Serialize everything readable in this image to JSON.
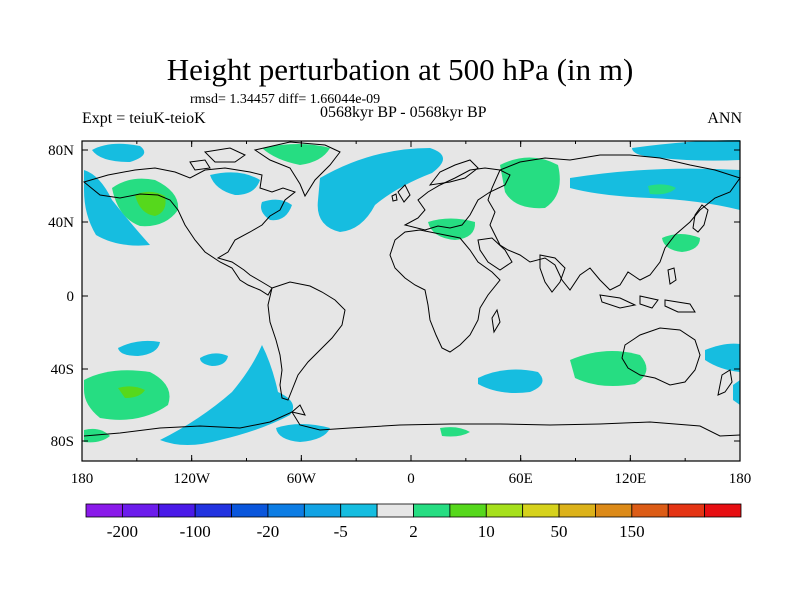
{
  "title": "Height perturbation at 500 hPa (in m)",
  "stats": "rmsd= 1.34457 diff= 1.66044e-09",
  "experiment": "Expt = teiuK-teioK",
  "period": "0568kyr BP - 0568kyr BP",
  "season": "ANN",
  "colors": {
    "background": "#e6e6e6",
    "coast": "#000000",
    "neg_small": "#16bde0",
    "pos_small": "#26dd82",
    "pos_mid": "#56d81c"
  },
  "lat_ticks": [
    "80N",
    "40N",
    "0",
    "40S",
    "80S"
  ],
  "lon_ticks": [
    "180",
    "120W",
    "60W",
    "0",
    "60E",
    "120E",
    "180"
  ],
  "colorbar": {
    "colors": [
      "#8a1aea",
      "#6c1cec",
      "#4a1ae8",
      "#2233e0",
      "#0a56dc",
      "#0d7de4",
      "#12a3e4",
      "#16bde0",
      "#e6e6e6",
      "#26dd82",
      "#56d81c",
      "#a6e01c",
      "#d6d21c",
      "#dcb21a",
      "#dc8a18",
      "#dc5c16",
      "#e43414",
      "#e60e12"
    ],
    "labels": [
      "-200",
      "-100",
      "-20",
      "-5",
      "2",
      "10",
      "50",
      "150"
    ]
  }
}
